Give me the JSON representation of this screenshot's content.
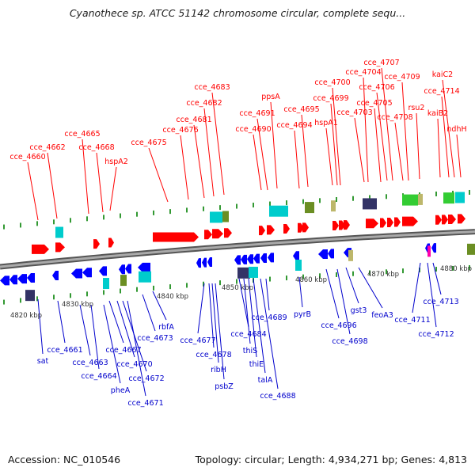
{
  "title": "Cyanothece sp. ATCC 51142 chromosome circular, complete sequ...",
  "footer": {
    "accession": "Accession: NC_010546",
    "summary": "Topology: circular; Length: 4,934,271 bp; Genes: 4,813"
  },
  "scale": {
    "tick_labels": [
      "4820 kbp",
      "4830 kbp",
      "4840 kbp",
      "4850 kbp",
      "4860 kbp",
      "4870 kbp",
      "4880 kbp"
    ]
  },
  "colors": {
    "forward_label": "#ff0000",
    "reverse_label": "#0000cc",
    "forward_gene": "#ff0000",
    "reverse_gene": "#0000ff",
    "backbone": "#888888",
    "feature_cyan": "#00cccc",
    "feature_olive": "#6b8e23",
    "feature_navy": "#333366",
    "feature_green": "#33cc33",
    "feature_khaki": "#bdb76b",
    "feature_magenta": "#ff00aa"
  },
  "forward_labels": [
    "cce_4660",
    "cce_4662",
    "cce_4665",
    "cce_4668",
    "hspA2",
    "cce_4675",
    "cce_4676",
    "cce_4681",
    "cce_4682",
    "cce_4683",
    "cce_4690",
    "cce_4691",
    "ppsA",
    "cce_4694",
    "cce_4695",
    "hspA1",
    "cce_4699",
    "cce_4700",
    "cce_4703",
    "cce_4704",
    "cce_4705",
    "cce_4706",
    "cce_4707",
    "cce_4708",
    "cce_4709",
    "rsu2",
    "kaiB2",
    "cce_4714",
    "kaiC2",
    "ndhH"
  ],
  "reverse_labels": [
    "sat",
    "cce_4661",
    "cce_4663",
    "cce_4664",
    "cce_4667",
    "pheA",
    "cce_4670",
    "cce_4672",
    "cce_4671",
    "cce_4673",
    "rbfA",
    "cce_4677",
    "cce_4678",
    "ribH",
    "psbZ",
    "cce_4684",
    "thiS",
    "thiE",
    "talA",
    "cce_4688",
    "cce_4689",
    "pyrB",
    "cce_4696",
    "cce_4698",
    "gst3",
    "feoA3",
    "cce_4711",
    "cce_4712",
    "cce_4713"
  ]
}
